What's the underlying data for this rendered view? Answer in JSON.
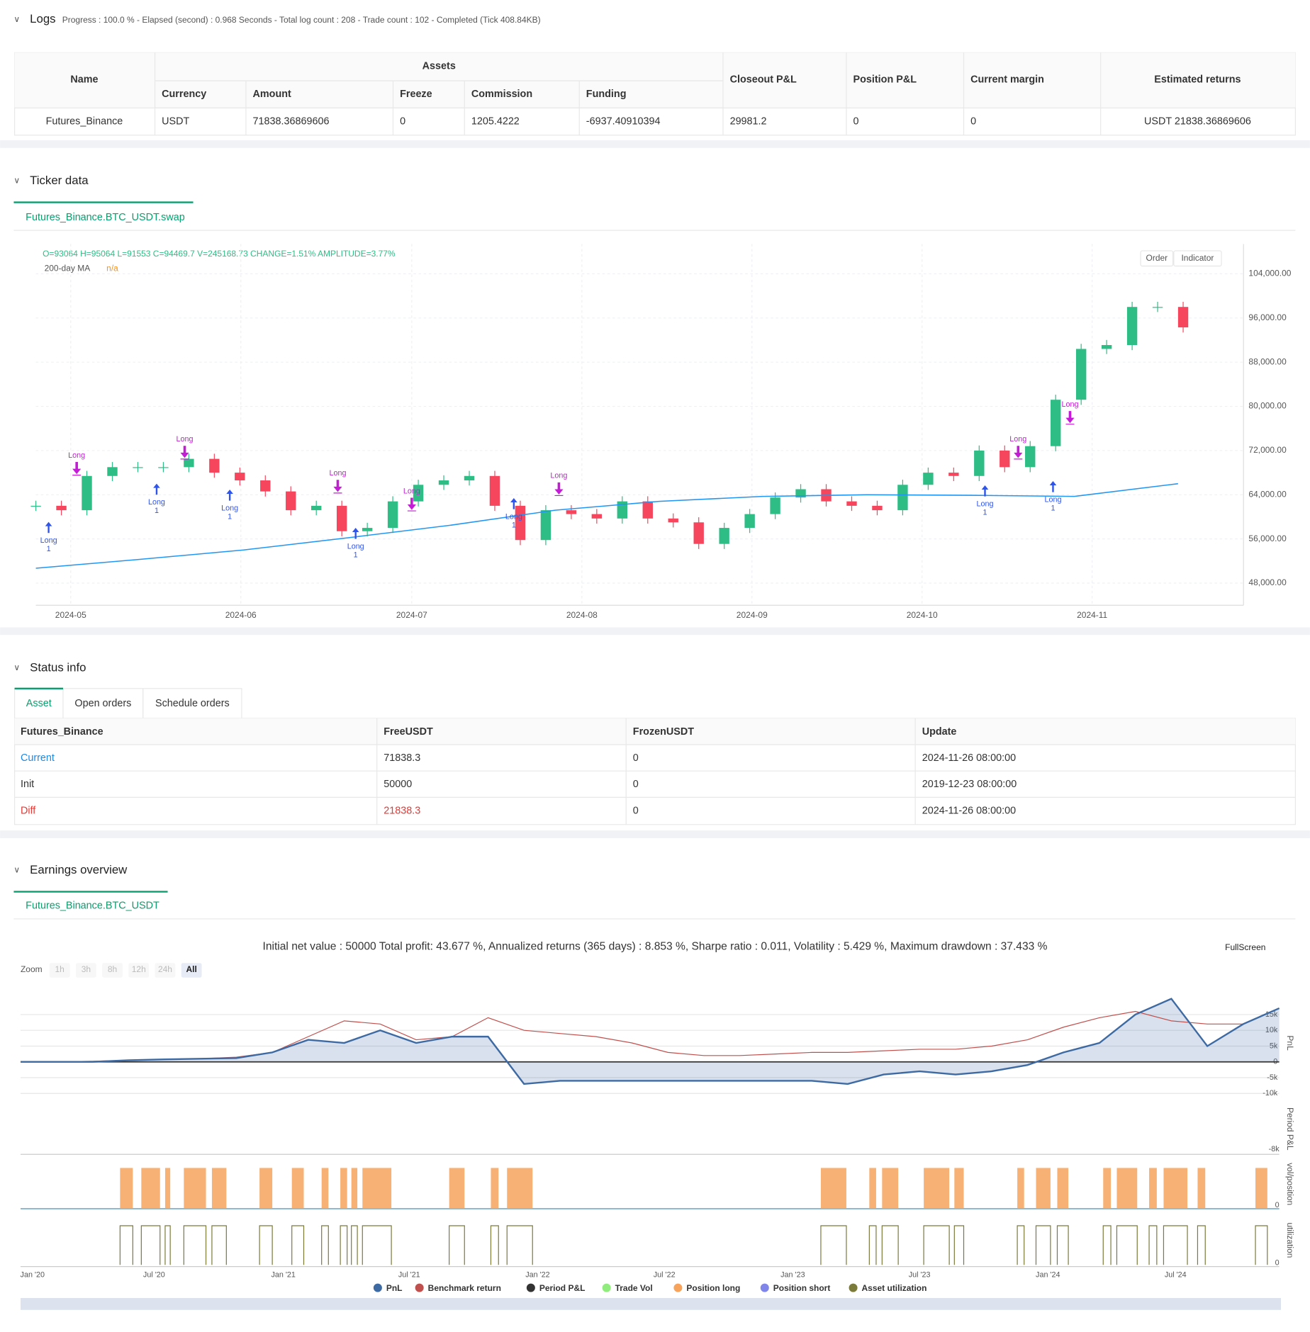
{
  "logs": {
    "title": "Logs",
    "summary": "Progress : 100.0 % - Elapsed (second) : 0.968 Seconds - Total log count : 208 - Trade count : 102 - Completed (Tick 408.84KB)"
  },
  "assets": {
    "group_header": "Assets",
    "headers": [
      "Name",
      "Currency",
      "Amount",
      "Freeze",
      "Commission",
      "Funding",
      "Closeout P&L",
      "Position P&L",
      "Current margin",
      "Estimated returns"
    ],
    "rows": [
      [
        "Futures_Binance",
        "USDT",
        "71838.36869606",
        "0",
        "1205.4222",
        "-6937.40910394",
        "29981.2",
        "0",
        "0",
        "USDT 21838.36869606"
      ]
    ]
  },
  "ticker": {
    "title": "Ticker data",
    "tab": "Futures_Binance.BTC_USDT.swap",
    "ohlc": "O=93064 H=95064 L=91553 C=94469.7 V=245168.73 CHANGE=1.51% AMPLITUDE=3.77%",
    "ma_name": "200-day MA",
    "ma_value": "n/a",
    "buttons": [
      "Order",
      "Indicator"
    ],
    "signal_label": "Long",
    "signal_qty": "1",
    "chart_data": {
      "type": "candlestick",
      "values": [
        62000,
        61200,
        67400,
        69000,
        69000,
        69000,
        70500,
        68000,
        66600,
        64600,
        61200,
        62000,
        57400,
        58000,
        62800,
        65800,
        66600,
        67400,
        62000,
        55800,
        61200,
        60500,
        59700,
        62800,
        59700,
        59000,
        55100,
        58000,
        60500,
        63500,
        65000,
        62800,
        62000,
        61200,
        65800,
        68000,
        67400,
        72000,
        69000,
        72800,
        81200,
        90400,
        91100,
        98000,
        98000,
        94300
      ],
      "up_color": "#2ebd85",
      "down_color": "#f6465d",
      "ma_values": [
        50700,
        52300,
        54000,
        56200,
        58500,
        61200,
        62800,
        63700,
        64000,
        63900,
        63700,
        66000
      ],
      "ma_color": "#2196f3",
      "ylim": [
        44000,
        109400
      ],
      "yticks": [
        {
          "value": 48000,
          "label": "48,000.00"
        },
        {
          "value": 56000,
          "label": "56,000.00"
        },
        {
          "value": 64000,
          "label": "64,000.00"
        },
        {
          "value": 72000,
          "label": "72,000.00"
        },
        {
          "value": 80000,
          "label": "80,000.00"
        },
        {
          "value": 88000,
          "label": "88,000.00"
        },
        {
          "value": 96000,
          "label": "96,000.00"
        },
        {
          "value": 104000,
          "label": "104,000.00"
        }
      ],
      "xticks": [
        "2024-05",
        "2024-06",
        "2024-07",
        "2024-08",
        "2024-09",
        "2024-10",
        "2024-11"
      ],
      "grid": true
    }
  },
  "status": {
    "title": "Status info",
    "tabs": [
      "Asset",
      "Open orders",
      "Schedule orders"
    ],
    "headers": [
      "Futures_Binance",
      "FreeUSDT",
      "FrozenUSDT",
      "Update"
    ],
    "rows": [
      [
        "Current",
        "71838.3",
        "0",
        "2024-11-26 08:00:00"
      ],
      [
        "Init",
        "50000",
        "0",
        "2019-12-23 08:00:00"
      ],
      [
        "Diff",
        "21838.3",
        "0",
        "2024-11-26 08:00:00"
      ]
    ]
  },
  "earnings": {
    "title": "Earnings overview",
    "tab": "Futures_Binance.BTC_USDT",
    "summary": "Initial net value : 50000 Total profit: 43.677 %, Annualized returns (365 days) : 8.853 %, Sharpe ratio : 0.011, Volatility : 5.429 %, Maximum drawdown : 37.433 %",
    "zoom_label": "Zoom",
    "zoom_buttons": [
      "1h",
      "3h",
      "8h",
      "12h",
      "24h",
      "All"
    ],
    "fullscreen": "FullScreen",
    "panel_labels": [
      "Period P&L",
      "vol/position",
      "utilization"
    ],
    "panel_ticks": [
      "-8k",
      "0",
      "0"
    ],
    "other_legend": [
      {
        "name": "Period P&L",
        "color": "#333333"
      },
      {
        "name": "Trade Vol",
        "color": "#90ed7d"
      },
      {
        "name": "Position long",
        "color": "#f7a35c"
      },
      {
        "name": "Position short",
        "color": "#8085e9"
      },
      {
        "name": "Asset utilization",
        "color": "#7a7a3a"
      }
    ],
    "chart_data": {
      "type": "line",
      "y_label": "PnL",
      "series": [
        {
          "name": "PnL",
          "color": "#3d6aa3",
          "values": [
            0,
            0,
            0,
            500,
            800,
            1000,
            1200,
            3000,
            7000,
            6000,
            10000,
            6000,
            8000,
            8000,
            -7000,
            -6000,
            -6000,
            -6000,
            -6000,
            -6000,
            -6000,
            -6000,
            -6000,
            -7000,
            -4000,
            -3000,
            -4000,
            -3000,
            -1000,
            3000,
            6000,
            15000,
            20000,
            5000,
            12000,
            17000
          ]
        },
        {
          "name": "Benchmark return",
          "color": "#c0504d",
          "values": [
            0,
            0,
            200,
            500,
            800,
            1000,
            1500,
            3000,
            8000,
            13000,
            12000,
            7000,
            8000,
            14000,
            10000,
            9000,
            8000,
            6000,
            3000,
            2000,
            2000,
            2500,
            3000,
            3000,
            3500,
            4000,
            4000,
            5000,
            7000,
            11000,
            14000,
            16000,
            13000,
            12000,
            12000,
            17000
          ]
        }
      ],
      "ylim": [
        -11800,
        23500
      ],
      "yticks": [
        {
          "value": -10000,
          "label": "-10k"
        },
        {
          "value": -5000,
          "label": "-5k"
        },
        0,
        {
          "value": 5000,
          "label": "5k"
        },
        {
          "value": 10000,
          "label": "10k"
        },
        {
          "value": 15000,
          "label": "15k"
        }
      ],
      "xticks": [
        "Jan '20",
        "Jul '20",
        "Jan '21",
        "Jul '21",
        "Jan '22",
        "Jul '22",
        "Jan '23",
        "Jul '23",
        "Jan '24",
        "Jul '24"
      ],
      "grid": true
    }
  }
}
